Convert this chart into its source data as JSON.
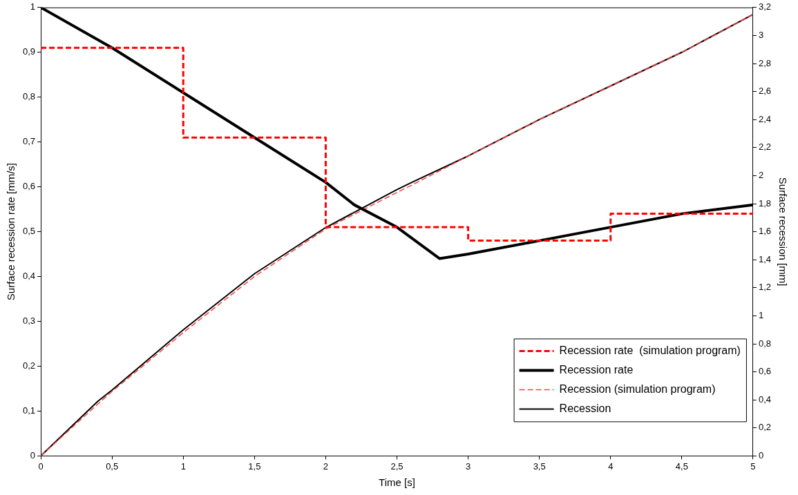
{
  "chart_data": {
    "type": "line",
    "xlabel": "Time [s]",
    "ylabel": "Surface recession rate [mm/s]",
    "y2label": "Surface recession [mm]",
    "xlim": [
      0,
      5
    ],
    "xticks": [
      0,
      {
        "value": 0.5,
        "label": "0,5"
      },
      1,
      {
        "value": 1.5,
        "label": "1,5"
      },
      2,
      {
        "value": 2.5,
        "label": "2,5"
      },
      3,
      {
        "value": 3.5,
        "label": "3,5"
      },
      4,
      {
        "value": 4.5,
        "label": "4,5"
      },
      5
    ],
    "ylim": [
      0,
      1
    ],
    "yticks": [
      0,
      {
        "value": 0.1,
        "label": "0,1"
      },
      {
        "value": 0.2,
        "label": "0,2"
      },
      {
        "value": 0.3,
        "label": "0,3"
      },
      {
        "value": 0.4,
        "label": "0,4"
      },
      {
        "value": 0.5,
        "label": "0,5"
      },
      {
        "value": 0.6,
        "label": "0,6"
      },
      {
        "value": 0.7,
        "label": "0,7"
      },
      {
        "value": 0.8,
        "label": "0,8"
      },
      {
        "value": 0.9,
        "label": "0,9"
      },
      1
    ],
    "y2lim": [
      0,
      3.2
    ],
    "y2ticks": [
      0,
      {
        "value": 0.2,
        "label": "0,2"
      },
      {
        "value": 0.4,
        "label": "0,4"
      },
      {
        "value": 0.6,
        "label": "0,6"
      },
      {
        "value": 0.8,
        "label": "0,8"
      },
      1,
      {
        "value": 1.2,
        "label": "1,2"
      },
      {
        "value": 1.4,
        "label": "1,4"
      },
      {
        "value": 1.6,
        "label": "1,6"
      },
      {
        "value": 1.8,
        "label": "1,8"
      },
      2,
      {
        "value": 2.2,
        "label": "2,2"
      },
      {
        "value": 2.4,
        "label": "2,4"
      },
      {
        "value": 2.6,
        "label": "2,6"
      },
      {
        "value": 2.8,
        "label": "2,8"
      },
      3,
      {
        "value": 3.2,
        "label": "3,2"
      }
    ],
    "grid": false,
    "legend": "bottom right",
    "marker": "none",
    "series": [
      {
        "name": "Recession rate  (simulation program)",
        "type": "step",
        "color": "#ff0000",
        "line_style": "dashed",
        "x": [
          0,
          1,
          2,
          3,
          4,
          5
        ],
        "values": [
          0.91,
          0.71,
          0.51,
          0.48,
          0.54,
          0.54
        ]
      },
      {
        "name": "Recession rate",
        "type": "line",
        "color": "#000000",
        "line_style": "solid",
        "x": [
          0,
          0.5,
          1,
          1.5,
          2,
          2.2,
          2.5,
          2.8,
          3,
          3.5,
          4,
          4.5,
          5
        ],
        "values": [
          1,
          0.91,
          0.81,
          0.71,
          0.61,
          0.56,
          0.51,
          0.44,
          0.45,
          0.48,
          0.51,
          0.54,
          0.56
        ]
      },
      {
        "name": "Recession (simulation program)",
        "type": "line",
        "axis": "y2",
        "color": "#ff4040",
        "line_style": "dashed",
        "x": [
          0,
          0.4,
          0.5,
          1,
          1.5,
          2,
          2.5,
          2.6,
          3,
          3.5,
          4,
          4.5,
          5
        ],
        "values": [
          0,
          0.37,
          0.46,
          0.88,
          1.28,
          1.62,
          1.88,
          1.93,
          2.14,
          2.4,
          2.64,
          2.88,
          3.15
        ]
      },
      {
        "name": "Recession",
        "type": "line",
        "axis": "y2",
        "color": "#000000",
        "line_style": "solid",
        "x": [
          0,
          0.4,
          0.5,
          1,
          1.5,
          2,
          2.5,
          2.6,
          3,
          3.5,
          4,
          4.5,
          5
        ],
        "values": [
          0,
          0.39,
          0.47,
          0.9,
          1.3,
          1.63,
          1.9,
          1.95,
          2.14,
          2.4,
          2.64,
          2.88,
          3.15
        ]
      }
    ]
  }
}
